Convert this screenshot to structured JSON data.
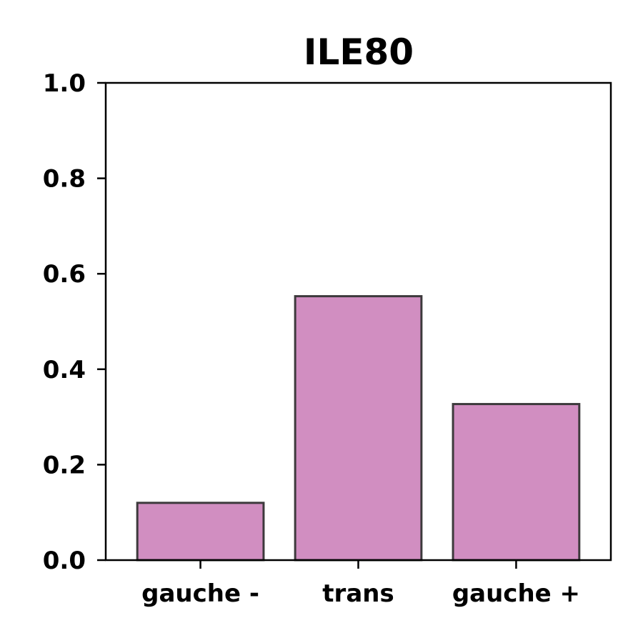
{
  "chart_data": {
    "type": "bar",
    "title": "ILE80",
    "xlabel": "",
    "ylabel": "",
    "categories": [
      "gauche -",
      "trans",
      "gauche +"
    ],
    "values": [
      0.12,
      0.553,
      0.327
    ],
    "ylim": [
      0,
      1.0
    ],
    "yticks": [
      "0.0",
      "0.2",
      "0.4",
      "0.6",
      "0.8",
      "1.0"
    ],
    "grid": false,
    "legend": "none",
    "bar_color": "#d18ec1",
    "bar_edge_color": "#3d3a3c"
  }
}
